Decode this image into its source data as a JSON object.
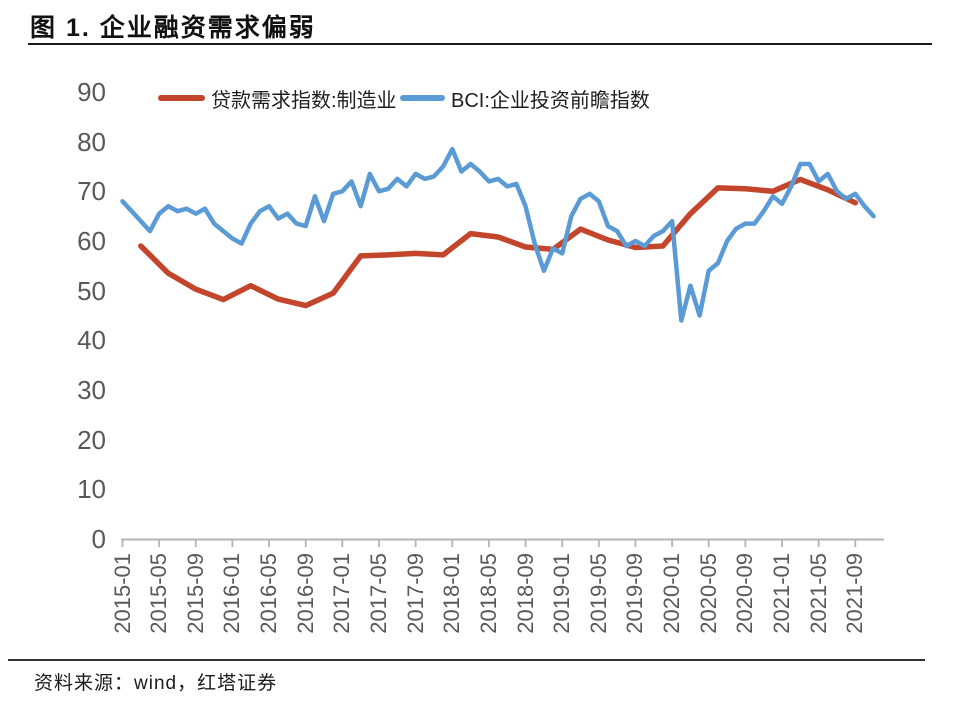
{
  "title": "图 1. 企业融资需求偏弱",
  "source": "资料来源：wind，红塔证券",
  "chart_data": {
    "type": "line",
    "title": "图 1. 企业融资需求偏弱",
    "xlabel": "",
    "ylabel": "",
    "ylim": [
      0,
      90
    ],
    "ytick_step": 10,
    "grid": false,
    "legend_position": "top",
    "axis_color": "#b3b3ba",
    "tick_label_color": "#595959",
    "x_tick_labels": [
      "2015-01",
      "2015-05",
      "2015-09",
      "2016-01",
      "2016-05",
      "2016-09",
      "2017-01",
      "2017-05",
      "2017-09",
      "2018-01",
      "2018-05",
      "2018-09",
      "2019-01",
      "2019-05",
      "2019-09",
      "2020-01",
      "2020-05",
      "2020-09",
      "2021-01",
      "2021-05",
      "2021-09"
    ],
    "series": [
      {
        "name": "贷款需求指数:制造业",
        "color": "#c3452b",
        "stroke_width": 5.5,
        "frequency": "quarterly",
        "x": [
          "2015-03",
          "2015-06",
          "2015-09",
          "2015-12",
          "2016-03",
          "2016-06",
          "2016-09",
          "2016-12",
          "2017-03",
          "2017-06",
          "2017-09",
          "2017-12",
          "2018-03",
          "2018-06",
          "2018-09",
          "2018-12",
          "2019-03",
          "2019-06",
          "2019-09",
          "2019-12",
          "2020-03",
          "2020-06",
          "2020-09",
          "2020-12",
          "2021-03",
          "2021-06",
          "2021-09"
        ],
        "values": [
          59,
          53.5,
          50.3,
          48.2,
          51,
          48.3,
          47,
          49.5,
          57,
          57.2,
          57.5,
          57.2,
          61.5,
          60.8,
          58.8,
          58.3,
          62.4,
          60.2,
          58.7,
          59,
          65.5,
          70.7,
          70.5,
          70,
          72.4,
          70.3,
          67.7
        ]
      },
      {
        "name": "BCI:企业投资前瞻指数",
        "color": "#5b9bd5",
        "stroke_width": 4.5,
        "frequency": "monthly",
        "x": [
          "2015-01",
          "2015-02",
          "2015-03",
          "2015-04",
          "2015-05",
          "2015-06",
          "2015-07",
          "2015-08",
          "2015-09",
          "2015-10",
          "2015-11",
          "2015-12",
          "2016-01",
          "2016-02",
          "2016-03",
          "2016-04",
          "2016-05",
          "2016-06",
          "2016-07",
          "2016-08",
          "2016-09",
          "2016-10",
          "2016-11",
          "2016-12",
          "2017-01",
          "2017-02",
          "2017-03",
          "2017-04",
          "2017-05",
          "2017-06",
          "2017-07",
          "2017-08",
          "2017-09",
          "2017-10",
          "2017-11",
          "2017-12",
          "2018-01",
          "2018-02",
          "2018-03",
          "2018-04",
          "2018-05",
          "2018-06",
          "2018-07",
          "2018-08",
          "2018-09",
          "2018-10",
          "2018-11",
          "2018-12",
          "2019-01",
          "2019-02",
          "2019-03",
          "2019-04",
          "2019-05",
          "2019-06",
          "2019-07",
          "2019-08",
          "2019-09",
          "2019-10",
          "2019-11",
          "2019-12",
          "2020-01",
          "2020-02",
          "2020-03",
          "2020-04",
          "2020-05",
          "2020-06",
          "2020-07",
          "2020-08",
          "2020-09",
          "2020-10",
          "2020-11",
          "2020-12",
          "2021-01",
          "2021-02",
          "2021-03",
          "2021-04",
          "2021-05",
          "2021-06",
          "2021-07",
          "2021-08",
          "2021-09",
          "2021-10",
          "2021-11"
        ],
        "values": [
          68,
          66,
          64,
          62,
          65.5,
          67,
          66,
          66.5,
          65.5,
          66.5,
          63.5,
          62,
          60.5,
          59.5,
          63.5,
          66,
          67,
          64.5,
          65.5,
          63.5,
          63,
          69,
          64,
          69.5,
          70,
          72,
          67,
          73.5,
          70,
          70.5,
          72.5,
          71,
          73.5,
          72.5,
          73,
          75,
          78.5,
          74,
          75.5,
          74,
          72,
          72.5,
          71,
          71.5,
          67,
          59.5,
          54,
          58.5,
          57.5,
          65,
          68.5,
          69.5,
          68,
          63,
          62,
          59,
          60,
          59,
          61,
          62,
          64,
          44,
          51,
          45,
          54,
          55.5,
          60,
          62.5,
          63.5,
          63.5,
          66,
          69,
          67.5,
          71,
          75.5,
          75.5,
          72,
          73.5,
          70,
          68.5,
          69.5,
          67,
          65
        ]
      }
    ]
  }
}
